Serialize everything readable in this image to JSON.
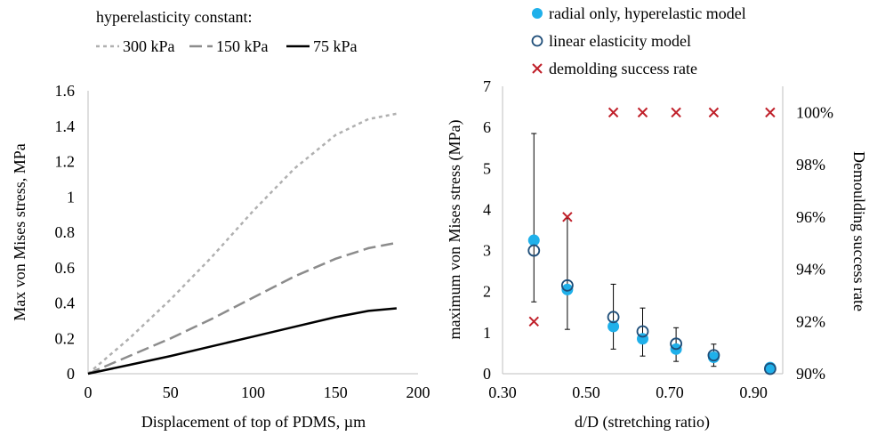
{
  "chart_data": [
    {
      "type": "line",
      "title": "",
      "legend_title": "hyperelasticity constant:",
      "legend_position": "top",
      "xlabel": "Displacement of top of PDMS, µm",
      "ylabel": "Max von Mises stress, MPa",
      "xlim": [
        0,
        200
      ],
      "ylim": [
        0,
        1.6
      ],
      "x_ticks": [
        "0",
        "50",
        "100",
        "150",
        "200"
      ],
      "y_ticks": [
        "0",
        "0.2",
        "0.4",
        "0.6",
        "0.8",
        "1",
        "1.2",
        "1.4",
        "1.6"
      ],
      "grid": false,
      "series": [
        {
          "name": "300 kPa",
          "color": "#b0b0b0",
          "dash": "short-dash",
          "x": [
            0,
            25,
            50,
            75,
            100,
            125,
            150,
            170,
            187
          ],
          "y": [
            0,
            0.2,
            0.42,
            0.66,
            0.92,
            1.16,
            1.35,
            1.44,
            1.47
          ]
        },
        {
          "name": "150 kPa",
          "color": "#8c8c8c",
          "dash": "long-dash",
          "x": [
            0,
            25,
            50,
            75,
            100,
            125,
            150,
            170,
            187
          ],
          "y": [
            0,
            0.1,
            0.2,
            0.31,
            0.43,
            0.55,
            0.65,
            0.71,
            0.74
          ]
        },
        {
          "name": "75 kPa",
          "color": "#000000",
          "dash": "solid",
          "x": [
            0,
            25,
            50,
            75,
            100,
            125,
            150,
            170,
            187
          ],
          "y": [
            0,
            0.05,
            0.1,
            0.155,
            0.21,
            0.265,
            0.32,
            0.355,
            0.37
          ]
        }
      ]
    },
    {
      "type": "scatter",
      "title": "",
      "legend_position": "top-right",
      "xlabel": "d/D (stretching ratio)",
      "ylabel": "maximum von Mises stress (MPa)",
      "y2label": "Demoulding success rate",
      "xlim": [
        0.3,
        0.97
      ],
      "ylim": [
        0,
        7
      ],
      "y2lim": [
        90,
        101
      ],
      "x_ticks": [
        "0.30",
        "0.50",
        "0.70",
        "0.90"
      ],
      "x_tick_values": [
        0.3,
        0.5,
        0.7,
        0.9
      ],
      "y_ticks": [
        "0",
        "1",
        "2",
        "3",
        "4",
        "5",
        "6",
        "7"
      ],
      "y2_ticks": [
        "90%",
        "92%",
        "94%",
        "96%",
        "98%",
        "100%"
      ],
      "y2_tick_values": [
        90,
        92,
        94,
        96,
        98,
        100
      ],
      "grid": false,
      "series": [
        {
          "name": "radial only, hyperelastic model",
          "marker": "filled-circle",
          "color": "#1fb0ea",
          "axis": "left",
          "x": [
            0.375,
            0.455,
            0.565,
            0.635,
            0.715,
            0.805,
            0.94
          ],
          "y": [
            3.25,
            2.05,
            1.15,
            0.85,
            0.6,
            0.4,
            0.15
          ]
        },
        {
          "name": "linear elasticity model",
          "marker": "open-circle",
          "color": "#1f4e79",
          "axis": "left",
          "x": [
            0.375,
            0.455,
            0.565,
            0.635,
            0.715,
            0.805,
            0.94
          ],
          "y": [
            3.0,
            2.15,
            1.38,
            1.03,
            0.73,
            0.45,
            0.12
          ],
          "err_low": [
            1.75,
            1.08,
            0.6,
            0.43,
            0.3,
            0.18,
            0.05
          ],
          "err_high": [
            5.85,
            3.78,
            2.18,
            1.6,
            1.12,
            0.72,
            0.25
          ]
        },
        {
          "name": "demolding success rate",
          "marker": "x",
          "color": "#c0202a",
          "axis": "right",
          "x": [
            0.375,
            0.455,
            0.565,
            0.635,
            0.715,
            0.805,
            0.94
          ],
          "y": [
            92,
            96,
            100,
            100,
            100,
            100,
            100
          ]
        }
      ]
    }
  ]
}
